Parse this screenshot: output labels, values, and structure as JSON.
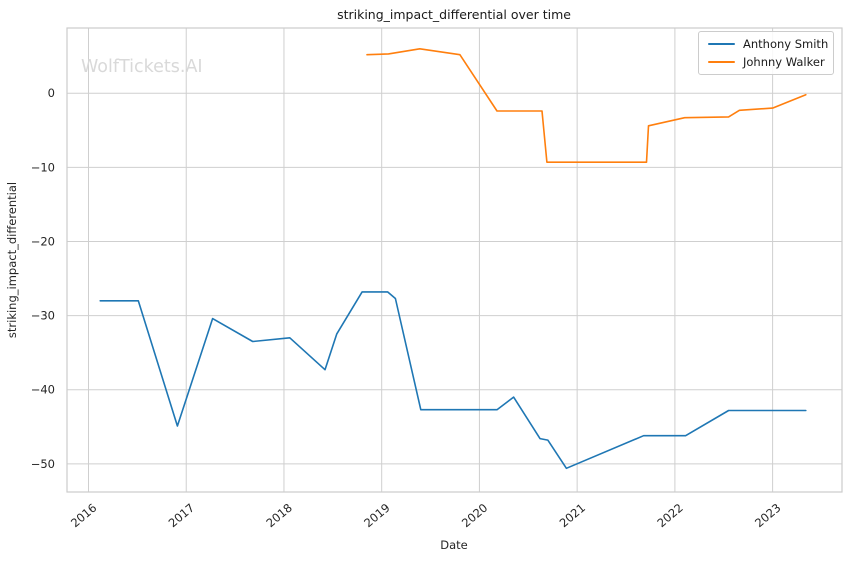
{
  "watermark": "WolfTickets.AI",
  "colors": {
    "background": "#ffffff",
    "grid": "#cfcfcf",
    "border": "#cccccc",
    "text": "#262626",
    "title_text": "#1a1a1a",
    "watermark_text": "#d9d9d9",
    "series_blue": "#1f77b4",
    "series_orange": "#ff7f0e"
  },
  "chart_data": {
    "type": "line",
    "title": "striking_impact_differential over time",
    "xlabel": "Date",
    "ylabel": "striking_impact_differential",
    "grid": true,
    "legend_position": "upper right",
    "xlim": [
      2015.78,
      2023.71
    ],
    "ylim": [
      -53.8,
      8.8
    ],
    "x_ticks": [
      2016,
      2017,
      2018,
      2019,
      2020,
      2021,
      2022,
      2023
    ],
    "x_tick_labels": [
      "2016",
      "2017",
      "2018",
      "2019",
      "2020",
      "2021",
      "2022",
      "2023"
    ],
    "y_ticks": [
      0,
      -10,
      -20,
      -30,
      -40,
      -50
    ],
    "series": [
      {
        "name": "Anthony Smith",
        "color": "#1f77b4",
        "x": [
          2016.12,
          2016.51,
          2016.91,
          2017.27,
          2017.68,
          2018.06,
          2018.42,
          2018.54,
          2018.8,
          2019.06,
          2019.14,
          2019.4,
          2020.18,
          2020.35,
          2020.62,
          2020.7,
          2020.89,
          2021.68,
          2022.11,
          2022.55,
          2023.34
        ],
        "y": [
          -28.0,
          -28.0,
          -44.9,
          -30.4,
          -33.5,
          -33.0,
          -37.3,
          -32.5,
          -26.8,
          -26.8,
          -27.7,
          -42.7,
          -42.7,
          -41.0,
          -46.6,
          -46.8,
          -50.6,
          -46.2,
          -46.2,
          -42.8,
          -42.8
        ]
      },
      {
        "name": "Johnny Walker",
        "color": "#ff7f0e",
        "x": [
          2018.85,
          2019.07,
          2019.39,
          2019.8,
          2020.18,
          2020.64,
          2020.69,
          2021.71,
          2021.73,
          2022.1,
          2022.55,
          2022.66,
          2023.0,
          2023.34
        ],
        "y": [
          5.2,
          5.3,
          6.0,
          5.2,
          -2.4,
          -2.4,
          -9.3,
          -9.3,
          -4.4,
          -3.3,
          -3.2,
          -2.3,
          -2.0,
          -0.2
        ]
      }
    ]
  }
}
